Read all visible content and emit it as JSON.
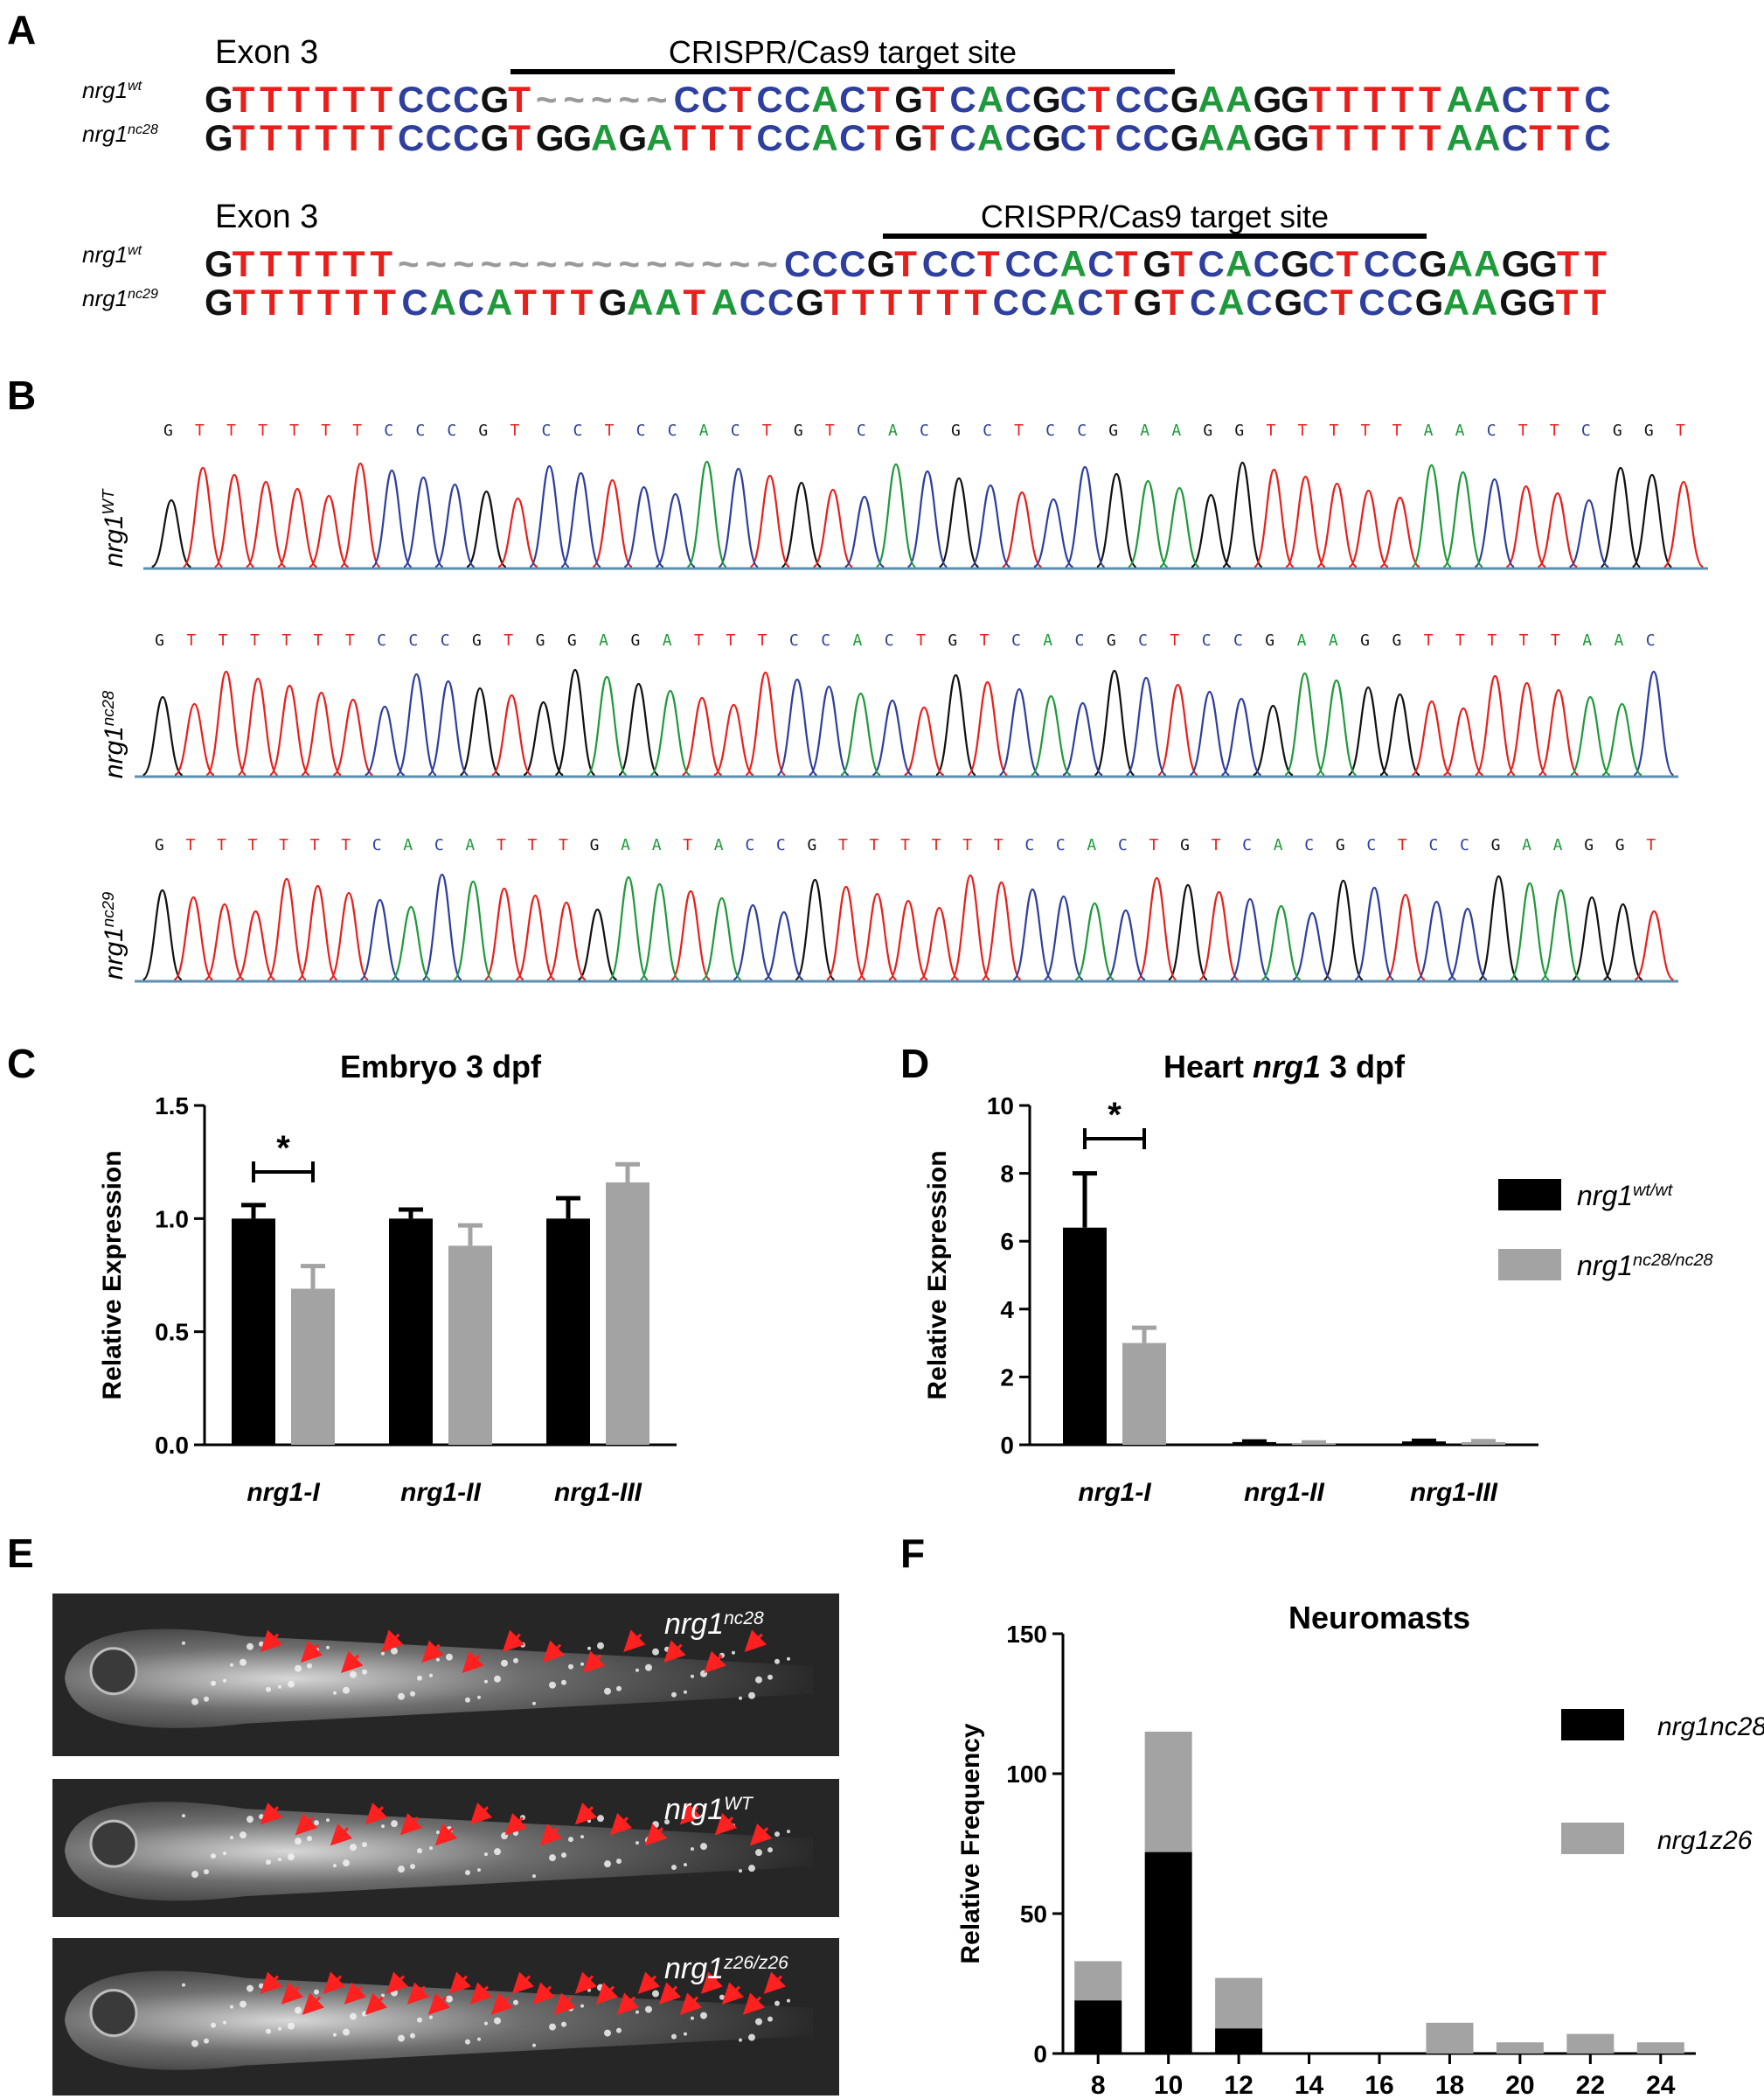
{
  "panels": {
    "A": "A",
    "B": "B",
    "C": "C",
    "D": "D",
    "E": "E",
    "F": "F"
  },
  "panel_a": {
    "blocks": [
      {
        "exon": "Exon 3",
        "target": "CRISPR/Cas9 target site",
        "rows": [
          {
            "gene": "nrg1",
            "sup": "wt",
            "seq": "GTTTTTTCCCGT~~~~~CCTCCACTGTCACGCTCCGAAGGTTTTTAACTTC"
          },
          {
            "gene": "nrg1",
            "sup": "nc28",
            "seq": "GTTTTTTCCCGTGGAGATTTCCACTGTCACGCTCCGAAGGTTTTTAACTTC"
          }
        ]
      },
      {
        "exon": "Exon 3",
        "target": "CRISPR/Cas9 target site",
        "rows": [
          {
            "gene": "nrg1",
            "sup": "wt",
            "seq": "GTTTTTT~~~~~~~~~~~~~~CCCGTCCTCCACTGTCACGCTCCGAAGGTT"
          },
          {
            "gene": "nrg1",
            "sup": "nc29",
            "seq": "GTTTTTTCACATTTGAATACCGTTTTTTCCACTGTCACGCTCCGAAGGTT"
          }
        ]
      }
    ],
    "base_colors": {
      "G": "#111111",
      "T": "#e8201c",
      "C": "#2e3f9e",
      "A": "#1f9a3b",
      "~": "#9a9a9a"
    }
  },
  "panel_b": {
    "traces": [
      {
        "gene": "nrg1",
        "sup": "WT",
        "bases": "GTTTTTTCCCGTCCTCCACTGTCACGCTCCGAAGGTTTTTAACTTCGGT"
      },
      {
        "gene": "nrg1",
        "sup": "nc28",
        "bases": "GTTTTTTCCCGTGGAGATTTCCACTGTCACGCTCCGAAGGTTTTTAAC"
      },
      {
        "gene": "nrg1",
        "sup": "nc29",
        "bases": "GTTTTTTCACATTTGAATACCGTTTTTTCCACTGTCACGCTCCGAAGGT"
      }
    ]
  },
  "chart_data": [
    {
      "id": "C",
      "type": "bar",
      "title": "Embryo 3 dpf",
      "ylabel": "Relative Expression",
      "ylim": [
        0,
        1.5
      ],
      "yticks": [
        "0.0",
        "0.5",
        "1.0",
        "1.5"
      ],
      "categories": [
        "nrg1-I",
        "nrg1-II",
        "nrg1-III"
      ],
      "series": [
        {
          "values": [
            1.0,
            1.0,
            1.0
          ],
          "errors": [
            0.06,
            0.04,
            0.09
          ],
          "color": "#000000"
        },
        {
          "values": [
            0.69,
            0.88,
            1.16
          ],
          "errors": [
            0.1,
            0.09,
            0.08
          ],
          "color": "#a3a3a3"
        }
      ],
      "significance": {
        "category": "nrg1-I",
        "mark": "*"
      }
    },
    {
      "id": "D",
      "type": "bar",
      "title_parts": [
        "Heart ",
        "nrg1",
        " 3 dpf"
      ],
      "ylabel": "Relative  Expression",
      "ylim": [
        0,
        10
      ],
      "yticks": [
        "0",
        "2",
        "4",
        "6",
        "8",
        "10"
      ],
      "categories": [
        "nrg1-I",
        "nrg1-II",
        "nrg1-III"
      ],
      "series": [
        {
          "name_gene": "nrg1",
          "name_sup": "wt/wt",
          "values": [
            6.4,
            0.08,
            0.1
          ],
          "errors": [
            1.6,
            0.02,
            0.02
          ],
          "color": "#000000"
        },
        {
          "name_gene": "nrg1",
          "name_sup": "nc28/nc28",
          "values": [
            3.0,
            0.05,
            0.08
          ],
          "errors": [
            0.45,
            0.02,
            0.03
          ],
          "color": "#a3a3a3"
        }
      ],
      "significance": {
        "category": "nrg1-I",
        "mark": "*"
      },
      "legend": "right"
    },
    {
      "id": "F",
      "type": "bar",
      "stacked": true,
      "title": "Neuromasts",
      "ylabel": "Relative Frequency",
      "ylim": [
        0,
        150
      ],
      "yticks": [
        "0",
        "50",
        "100",
        "150"
      ],
      "categories": [
        "8",
        "10",
        "12",
        "14",
        "16",
        "18",
        "20",
        "22",
        "24"
      ],
      "series": [
        {
          "name": "nrg1nc28",
          "values": [
            19,
            72,
            9,
            0,
            0,
            0,
            0,
            0,
            0
          ],
          "color": "#000000"
        },
        {
          "name": "nrg1z26",
          "values": [
            14,
            43,
            18,
            0,
            0,
            11,
            4,
            7,
            4
          ],
          "color": "#a3a3a3"
        }
      ],
      "legend": "right"
    }
  ],
  "panel_e": {
    "images": [
      {
        "gene": "nrg1",
        "sup": "nc28",
        "arrows": 13
      },
      {
        "gene": "nrg1",
        "sup": "WT",
        "arrows": 15
      },
      {
        "gene": "nrg1",
        "sup": "z26/z26",
        "arrows": 25
      }
    ]
  }
}
